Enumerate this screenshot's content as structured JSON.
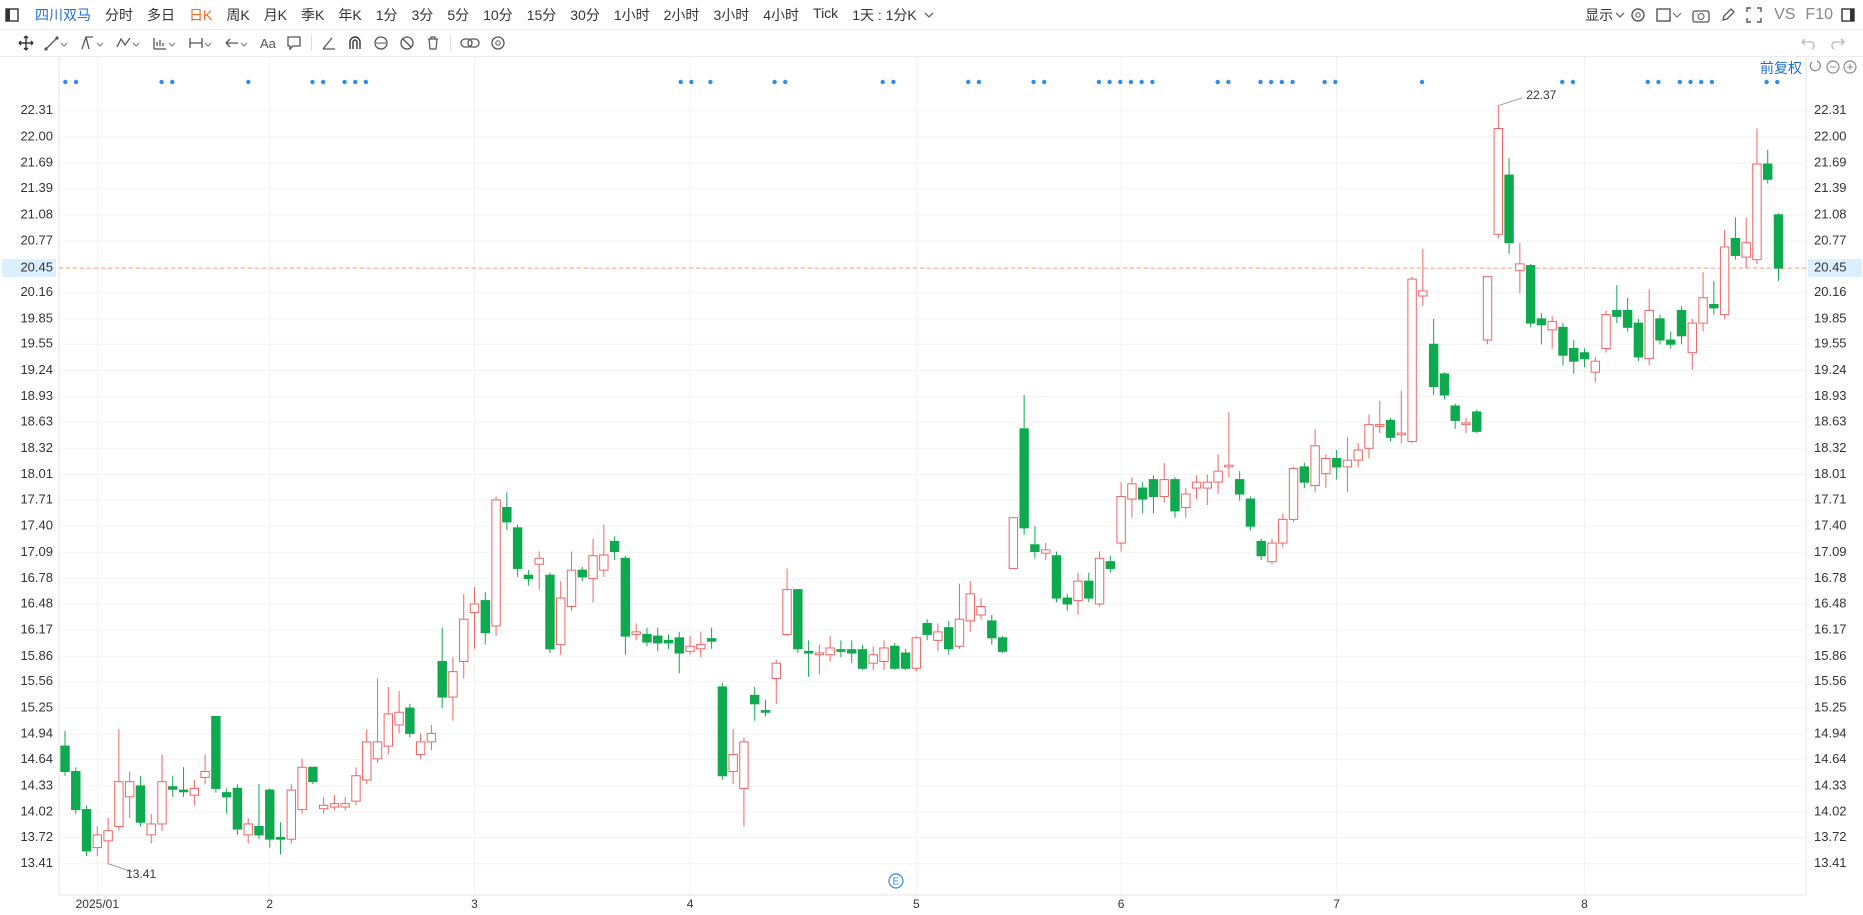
{
  "toolbar": {
    "stock": "四川双马",
    "periods": [
      "分时",
      "多日",
      "日K",
      "周K",
      "月K",
      "季K",
      "年K",
      "1分",
      "3分",
      "5分",
      "10分",
      "15分",
      "30分",
      "1小时",
      "2小时",
      "3小时",
      "4小时",
      "Tick"
    ],
    "interval": "1天 : 1分K",
    "display": "显示",
    "vs": "VS",
    "f10": "F10",
    "text_tool": "Aa",
    "adjust": "前复权"
  },
  "chart_data": {
    "type": "candlestick",
    "categories": [
      null,
      null,
      null,
      "2025/01",
      null,
      null,
      null,
      null,
      null,
      null,
      null,
      null,
      null,
      null,
      null,
      null,
      null,
      null,
      null,
      "2",
      null,
      null,
      null,
      null,
      null,
      null,
      null,
      null,
      null,
      null,
      null,
      null,
      null,
      null,
      null,
      null,
      null,
      null,
      "3",
      null,
      null,
      null,
      null,
      null,
      null,
      null,
      null,
      null,
      null,
      null,
      null,
      null,
      null,
      null,
      null,
      null,
      null,
      null,
      "4",
      null,
      null,
      null,
      null,
      null,
      null,
      null,
      null,
      null,
      null,
      null,
      null,
      null,
      null,
      null,
      null,
      null,
      null,
      null,
      null,
      "5",
      null,
      null,
      null,
      null,
      null,
      null,
      null,
      null,
      null,
      null,
      null,
      null,
      null,
      null,
      null,
      null,
      null,
      null,
      "6",
      null,
      null,
      null,
      null,
      null,
      null,
      null,
      null,
      null,
      null,
      null,
      null,
      null,
      null,
      null,
      null,
      null,
      null,
      null,
      "7",
      null,
      null,
      null,
      null,
      null,
      null,
      null,
      null,
      null,
      null,
      null,
      null,
      null,
      null,
      null,
      null,
      null,
      null,
      null,
      null,
      null,
      null,
      "8",
      null,
      null,
      null,
      null,
      null,
      null,
      null,
      null,
      null,
      null,
      null,
      null,
      null,
      null,
      null,
      null,
      null,
      null
    ],
    "open": [
      14.8,
      14.5,
      14.05,
      13.6,
      13.68,
      13.85,
      14.2,
      14.33,
      13.75,
      13.88,
      14.32,
      14.28,
      14.22,
      14.43,
      15.15,
      14.25,
      14.3,
      13.75,
      13.85,
      14.28,
      13.72,
      13.7,
      14.05,
      14.55,
      14.06,
      14.08,
      14.08,
      14.15,
      14.4,
      14.65,
      14.8,
      15.05,
      15.25,
      14.7,
      14.85,
      15.8,
      15.38,
      15.8,
      16.38,
      16.52,
      16.22,
      17.62,
      17.38,
      16.82,
      16.95,
      16.82,
      16.0,
      16.45,
      16.88,
      16.78,
      16.88,
      17.22,
      17.02,
      16.12,
      16.12,
      16.1,
      16.05,
      16.08,
      15.92,
      15.95,
      16.07,
      15.5,
      14.5,
      14.3,
      15.4,
      15.22,
      15.6,
      16.12,
      16.65,
      15.92,
      15.88,
      15.88,
      15.94,
      15.94,
      15.94,
      15.78,
      15.8,
      15.98,
      15.9,
      15.72,
      16.25,
      16.05,
      16.2,
      15.98,
      16.28,
      16.35,
      16.28,
      16.08,
      16.9,
      18.55,
      17.18,
      17.08,
      17.05,
      16.55,
      16.52,
      16.75,
      16.48,
      16.98,
      17.2,
      17.72,
      17.85,
      17.95,
      17.75,
      17.95,
      17.62,
      17.85,
      17.85,
      17.92,
      18.1,
      17.95,
      17.72,
      17.22,
      16.98,
      17.2,
      17.48,
      18.1,
      17.88,
      18.02,
      18.2,
      18.1,
      18.18,
      18.32,
      18.58,
      18.65,
      18.48,
      18.4,
      20.12,
      19.55,
      19.2,
      18.82,
      18.6,
      18.75,
      19.6,
      20.85,
      21.55,
      20.42,
      20.48,
      19.85,
      19.72,
      19.75,
      19.5,
      19.45,
      19.22,
      19.5,
      19.95,
      19.95,
      19.8,
      19.38,
      19.85,
      19.6,
      19.95,
      19.45,
      19.8,
      20.02,
      19.9,
      20.8,
      20.58,
      20.55,
      21.68,
      21.08
    ],
    "high": [
      14.98,
      14.55,
      14.1,
      13.85,
      13.95,
      15.0,
      14.5,
      14.45,
      14.0,
      14.7,
      14.45,
      14.55,
      14.4,
      14.7,
      15.15,
      14.3,
      14.35,
      13.95,
      14.35,
      14.3,
      13.9,
      14.35,
      14.65,
      14.55,
      14.2,
      14.22,
      14.2,
      14.55,
      15.0,
      15.6,
      15.5,
      15.45,
      15.3,
      14.95,
      15.05,
      16.2,
      15.85,
      16.6,
      16.68,
      16.62,
      17.75,
      17.8,
      17.42,
      16.88,
      17.1,
      16.85,
      16.75,
      17.1,
      16.92,
      17.25,
      17.42,
      17.28,
      17.05,
      16.25,
      16.2,
      16.2,
      16.12,
      16.15,
      16.1,
      16.15,
      16.2,
      15.55,
      15.0,
      14.9,
      15.5,
      15.35,
      15.82,
      16.9,
      16.65,
      16.05,
      16.0,
      16.1,
      16.05,
      16.05,
      16.0,
      15.98,
      16.05,
      16.02,
      15.95,
      16.1,
      16.3,
      16.25,
      16.28,
      16.72,
      16.75,
      16.55,
      16.35,
      16.1,
      17.5,
      18.95,
      17.4,
      17.2,
      17.1,
      16.6,
      16.85,
      16.85,
      17.1,
      17.05,
      17.92,
      17.98,
      17.92,
      18.0,
      18.15,
      17.98,
      17.85,
      18.0,
      18.01,
      18.25,
      18.75,
      18.05,
      17.75,
      17.25,
      17.25,
      17.55,
      18.1,
      18.15,
      18.55,
      18.25,
      18.3,
      18.45,
      18.38,
      18.72,
      18.88,
      18.68,
      19.0,
      20.35,
      20.68,
      19.85,
      19.22,
      18.85,
      18.68,
      18.78,
      20.35,
      22.37,
      21.75,
      20.75,
      20.5,
      19.92,
      19.88,
      19.8,
      19.6,
      19.5,
      19.4,
      19.95,
      20.25,
      20.1,
      19.85,
      20.2,
      19.9,
      19.7,
      20.0,
      19.85,
      20.4,
      20.3,
      20.9,
      21.05,
      21.05,
      22.1,
      21.85,
      21.1
    ],
    "low": [
      14.45,
      14.0,
      13.5,
      13.5,
      13.41,
      13.8,
      13.95,
      13.85,
      13.65,
      13.8,
      14.2,
      14.2,
      14.1,
      14.35,
      14.25,
      14.0,
      13.75,
      13.65,
      13.7,
      13.6,
      13.52,
      13.65,
      14.0,
      14.35,
      14.0,
      14.04,
      14.04,
      14.1,
      14.35,
      14.6,
      14.7,
      14.95,
      14.9,
      14.65,
      14.75,
      15.25,
      15.1,
      15.6,
      15.95,
      16.0,
      16.1,
      17.35,
      16.8,
      16.7,
      16.65,
      15.9,
      15.88,
      16.4,
      16.75,
      16.5,
      16.8,
      17.0,
      15.88,
      16.05,
      15.98,
      15.92,
      15.95,
      15.66,
      15.88,
      15.85,
      15.95,
      14.4,
      14.35,
      13.85,
      15.1,
      15.15,
      15.3,
      16.1,
      15.9,
      15.62,
      15.65,
      15.8,
      15.85,
      15.78,
      15.7,
      15.7,
      15.7,
      15.7,
      15.7,
      15.68,
      16.05,
      15.92,
      15.88,
      15.95,
      16.15,
      16.3,
      16.0,
      15.9,
      16.9,
      17.3,
      17.02,
      17.0,
      16.5,
      16.4,
      16.35,
      16.5,
      16.45,
      16.85,
      17.1,
      17.5,
      17.55,
      17.55,
      17.68,
      17.5,
      17.5,
      17.72,
      17.65,
      17.78,
      17.98,
      17.7,
      17.35,
      17.0,
      16.95,
      17.15,
      17.45,
      17.85,
      17.8,
      17.85,
      17.95,
      17.8,
      18.1,
      18.2,
      18.5,
      18.4,
      18.38,
      18.38,
      20.0,
      18.95,
      18.9,
      18.55,
      18.5,
      18.5,
      19.55,
      20.8,
      20.62,
      20.15,
      19.75,
      19.55,
      19.5,
      19.3,
      19.2,
      19.28,
      19.1,
      19.45,
      19.8,
      19.7,
      19.35,
      19.3,
      19.55,
      19.5,
      19.55,
      19.25,
      19.7,
      19.9,
      19.85,
      20.55,
      20.45,
      20.5,
      21.45,
      20.3
    ],
    "close": [
      14.5,
      14.05,
      13.56,
      13.75,
      13.8,
      14.38,
      14.38,
      13.9,
      13.88,
      14.38,
      14.29,
      14.26,
      14.3,
      14.5,
      14.3,
      14.2,
      13.82,
      13.88,
      13.75,
      13.7,
      13.7,
      14.28,
      14.55,
      14.38,
      14.1,
      14.12,
      14.12,
      14.45,
      14.85,
      14.85,
      15.18,
      15.2,
      14.95,
      14.85,
      14.95,
      15.38,
      15.68,
      16.3,
      16.48,
      16.14,
      17.71,
      17.45,
      16.9,
      16.78,
      17.02,
      15.95,
      16.55,
      16.88,
      16.8,
      17.05,
      17.06,
      17.1,
      16.1,
      16.15,
      16.03,
      16.02,
      16.02,
      15.9,
      15.98,
      16.0,
      16.04,
      14.45,
      14.7,
      14.85,
      15.3,
      15.2,
      15.78,
      16.65,
      15.95,
      15.9,
      15.9,
      15.96,
      15.92,
      15.9,
      15.72,
      15.88,
      15.96,
      15.72,
      15.72,
      16.08,
      16.12,
      16.15,
      15.95,
      16.3,
      16.6,
      16.45,
      16.08,
      15.92,
      17.5,
      17.38,
      17.1,
      17.12,
      16.55,
      16.48,
      16.75,
      16.55,
      17.02,
      16.9,
      17.75,
      17.9,
      17.72,
      17.75,
      17.95,
      17.58,
      17.78,
      17.92,
      17.92,
      18.05,
      18.12,
      17.78,
      17.4,
      17.05,
      17.2,
      17.48,
      18.08,
      17.92,
      18.35,
      18.2,
      18.1,
      18.18,
      18.3,
      18.6,
      18.6,
      18.45,
      18.5,
      20.32,
      20.18,
      19.05,
      18.95,
      18.65,
      18.62,
      18.52,
      20.35,
      22.1,
      20.75,
      20.5,
      19.8,
      19.78,
      19.82,
      19.42,
      19.35,
      19.38,
      19.35,
      19.9,
      19.88,
      19.75,
      19.4,
      19.95,
      19.6,
      19.55,
      19.65,
      19.8,
      20.1,
      19.98,
      20.7,
      20.6,
      20.75,
      21.68,
      21.5,
      20.45
    ],
    "up_color": "#ee6666",
    "down_color": "#0fa94f",
    "ylim": [
      13.04,
      22.91
    ],
    "yticks": [
      22.31,
      {
        "value": 22,
        "label": "22.00"
      },
      21.69,
      21.39,
      21.08,
      20.77,
      20.45,
      20.16,
      19.85,
      19.55,
      19.24,
      18.93,
      18.63,
      18.32,
      18.01,
      17.71,
      {
        "value": 17.4,
        "label": "17.40"
      },
      17.09,
      16.78,
      16.48,
      16.17,
      15.86,
      15.56,
      15.25,
      14.94,
      14.64,
      14.33,
      14.02,
      13.72,
      13.41
    ],
    "grid": true,
    "last_price": 20.45,
    "high_label": 22.37,
    "low_label": 13.41,
    "event_label": "E"
  }
}
